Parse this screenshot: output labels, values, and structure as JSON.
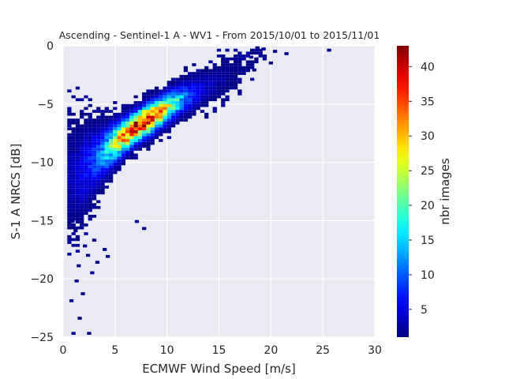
{
  "chart_data": {
    "type": "heatmap",
    "title": "Ascending - Sentinel-1 A - WV1 - From 2015/10/01 to 2015/11/01",
    "xlabel": "ECMWF Wind Speed [m/s]",
    "ylabel": "S-1 A NRCS [dB]",
    "xlim": [
      0,
      30
    ],
    "ylim": [
      -25,
      0
    ],
    "xticks": [
      0,
      5,
      10,
      15,
      20,
      25,
      30
    ],
    "xtick_labels": [
      "0",
      "5",
      "10",
      "15",
      "20",
      "25",
      "30"
    ],
    "yticks": [
      0,
      -5,
      -10,
      -15,
      -20,
      -25
    ],
    "ytick_labels": [
      "0",
      "−5",
      "−10",
      "−15",
      "−20",
      "−25"
    ],
    "grid": true,
    "bin_width_x": 0.4,
    "bin_height_y": 0.25,
    "ridge": [
      {
        "x": 0.5,
        "y": -11.5,
        "spread": 2.8,
        "peak": 3
      },
      {
        "x": 1.5,
        "y": -11.0,
        "spread": 2.5,
        "peak": 5
      },
      {
        "x": 2.5,
        "y": -10.2,
        "spread": 1.8,
        "peak": 8
      },
      {
        "x": 3.5,
        "y": -9.5,
        "spread": 1.4,
        "peak": 12
      },
      {
        "x": 4.5,
        "y": -8.7,
        "spread": 1.1,
        "peak": 20
      },
      {
        "x": 5.5,
        "y": -8.0,
        "spread": 0.9,
        "peak": 32
      },
      {
        "x": 6.5,
        "y": -7.3,
        "spread": 0.8,
        "peak": 40
      },
      {
        "x": 7.5,
        "y": -6.7,
        "spread": 0.8,
        "peak": 42
      },
      {
        "x": 8.5,
        "y": -6.2,
        "spread": 0.8,
        "peak": 36
      },
      {
        "x": 9.5,
        "y": -5.6,
        "spread": 0.8,
        "peak": 28
      },
      {
        "x": 10.5,
        "y": -5.1,
        "spread": 0.8,
        "peak": 20
      },
      {
        "x": 11.5,
        "y": -4.6,
        "spread": 0.8,
        "peak": 12
      },
      {
        "x": 12.5,
        "y": -4.2,
        "spread": 0.9,
        "peak": 7
      },
      {
        "x": 13.5,
        "y": -3.7,
        "spread": 0.9,
        "peak": 4
      },
      {
        "x": 14.5,
        "y": -3.3,
        "spread": 1.0,
        "peak": 3
      },
      {
        "x": 15.5,
        "y": -2.8,
        "spread": 1.0,
        "peak": 2
      },
      {
        "x": 16.5,
        "y": -2.3,
        "spread": 1.0,
        "peak": 1.5
      },
      {
        "x": 17.5,
        "y": -1.7,
        "spread": 0.8,
        "peak": 1.2
      },
      {
        "x": 18.5,
        "y": -1.2,
        "spread": 0.6,
        "peak": 1
      },
      {
        "x": 19.5,
        "y": -0.8,
        "spread": 0.5,
        "peak": 1
      }
    ],
    "low_tail": [
      {
        "x": 0.6,
        "y": -22.0
      },
      {
        "x": 0.8,
        "y": -24.8
      },
      {
        "x": 1.1,
        "y": -20.3
      },
      {
        "x": 1.4,
        "y": -23.5
      },
      {
        "x": 1.7,
        "y": -21.4
      },
      {
        "x": 1.3,
        "y": -19.0
      },
      {
        "x": 2.2,
        "y": -18.1
      },
      {
        "x": 1.9,
        "y": -17.3
      },
      {
        "x": 2.6,
        "y": -19.6
      },
      {
        "x": 3.1,
        "y": -18.7
      },
      {
        "x": 2.8,
        "y": -16.8
      },
      {
        "x": 3.8,
        "y": -17.6
      },
      {
        "x": 4.1,
        "y": -18.2
      },
      {
        "x": 1.0,
        "y": -16.0
      },
      {
        "x": 0.7,
        "y": -15.2
      },
      {
        "x": 2.3,
        "y": -24.8
      },
      {
        "x": 6.9,
        "y": -15.2
      },
      {
        "x": 7.6,
        "y": -15.8
      }
    ],
    "sparse_high": [
      {
        "x": 25.4,
        "y": -0.5
      },
      {
        "x": 21.3,
        "y": -0.8
      },
      {
        "x": 20.2,
        "y": -0.6
      },
      {
        "x": 19.1,
        "y": -0.4
      },
      {
        "x": 18.5,
        "y": -0.3
      },
      {
        "x": 17.9,
        "y": -1.1
      },
      {
        "x": 19.8,
        "y": -1.6
      },
      {
        "x": 18.2,
        "y": -2.2
      }
    ],
    "colorbar": {
      "label": "nbr images",
      "min": 1,
      "max": 43,
      "ticks": [
        5,
        10,
        15,
        20,
        25,
        30,
        35,
        40
      ],
      "colormap": "jet"
    },
    "colors": {
      "background": "#eaeaf2",
      "grid": "#ffffff",
      "text": "#262626"
    }
  }
}
